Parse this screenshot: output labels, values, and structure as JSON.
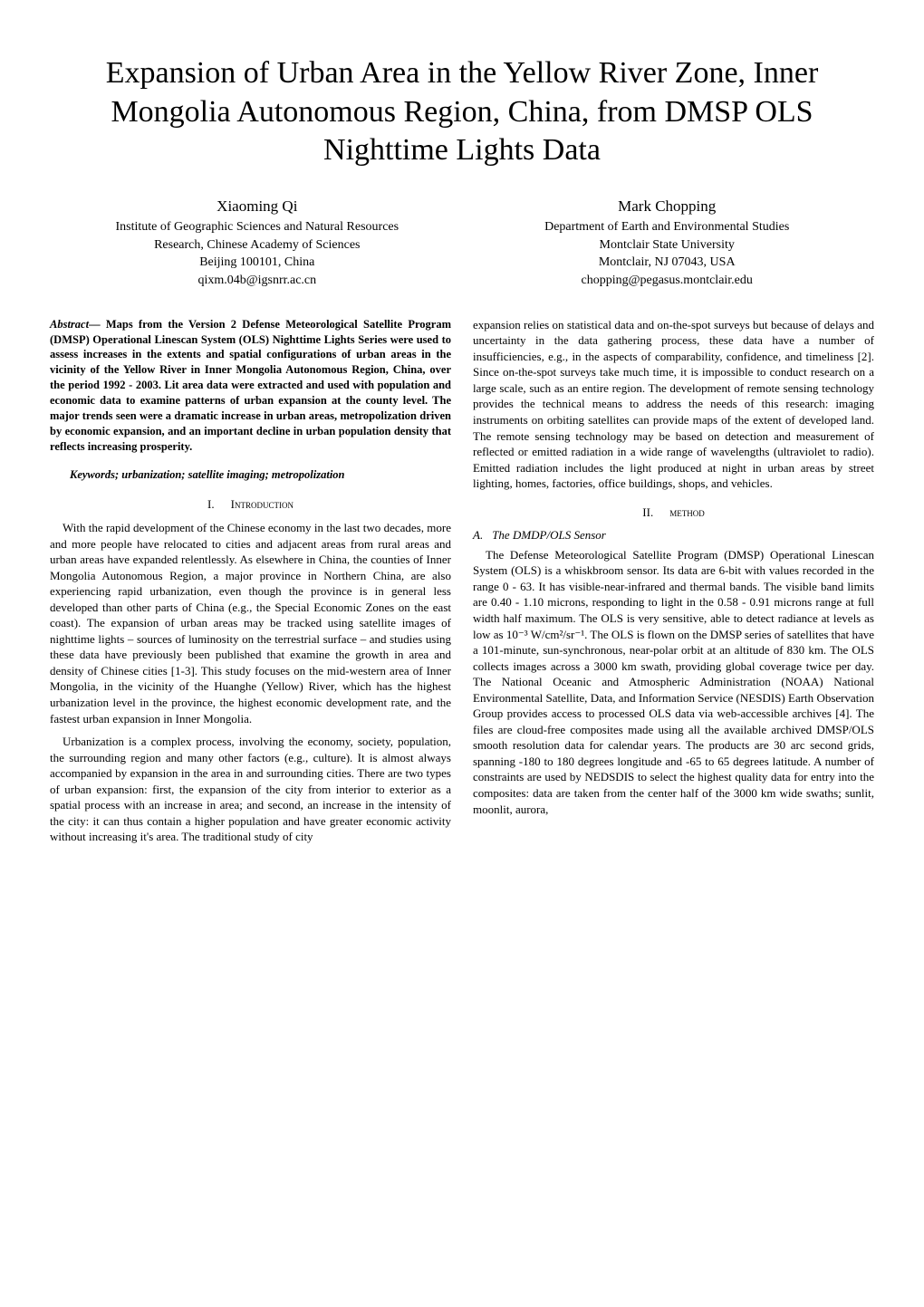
{
  "title": "Expansion of Urban Area in the Yellow River Zone, Inner Mongolia Autonomous Region, China, from DMSP OLS Nighttime Lights Data",
  "authors": [
    {
      "name": "Xiaoming Qi",
      "lines": [
        "Institute of Geographic Sciences and Natural Resources",
        "Research, Chinese Academy of Sciences",
        "Beijing 100101, China",
        "qixm.04b@igsnrr.ac.cn"
      ]
    },
    {
      "name": "Mark Chopping",
      "lines": [
        "Department of Earth and Environmental Studies",
        "Montclair State University",
        "Montclair, NJ 07043, USA",
        "chopping@pegasus.montclair.edu"
      ]
    }
  ],
  "abstract_label": "Abstract",
  "abstract": "— Maps from the Version 2 Defense Meteorological Satellite Program (DMSP) Operational Linescan System (OLS) Nighttime Lights Series were used to assess increases in the extents and spatial configurations of urban areas in the vicinity of the Yellow River in Inner Mongolia Autonomous Region, China, over the period 1992 - 2003. Lit area data were extracted and used with population and economic data to examine patterns of urban expansion at the county level. The major trends seen were a dramatic increase in urban areas, metropolization driven by economic expansion, and an important decline in urban population density that reflects increasing prosperity.",
  "keywords": "Keywords; urbanization; satellite imaging; metropolization",
  "sections": {
    "intro": {
      "num": "I.",
      "title": "Introduction"
    },
    "method": {
      "num": "II.",
      "title": "method"
    },
    "sub_a": {
      "letter": "A.",
      "title": "The DMDP/OLS Sensor"
    }
  },
  "paras": {
    "intro_p1": "With the rapid development of the Chinese economy in the last two decades, more and more people have relocated to cities and adjacent areas from rural areas and urban areas have expanded relentlessly. As elsewhere in China, the counties of Inner Mongolia Autonomous Region, a major province in Northern China, are also experiencing rapid urbanization, even though the province is in general less developed than other parts of China (e.g., the Special Economic Zones on the east coast). The expansion of urban areas may be tracked using satellite images of nighttime lights – sources of luminosity on the terrestrial surface – and studies using these data have previously been published that examine the growth in area and density of Chinese cities [1-3]. This study focuses on the mid-western area of Inner Mongolia, in the vicinity of the Huanghe (Yellow) River, which has the highest urbanization level in the province, the highest economic development rate, and the fastest urban expansion in Inner Mongolia.",
    "intro_p2": "Urbanization is a complex process, involving the economy, society, population, the surrounding region and many other factors (e.g., culture). It is almost always accompanied by expansion in the area in and surrounding cities. There are two types of urban expansion: first, the expansion of the city from interior to exterior as a spatial process with an increase in area; and second, an increase in the intensity of the city: it can thus contain a higher population and have greater economic activity without increasing it's area. The traditional study of city",
    "right_p1": "expansion relies on statistical data and on-the-spot surveys but because of delays and uncertainty in the data gathering process, these data have a number of insufficiencies, e.g., in the aspects of comparability, confidence, and timeliness [2]. Since on-the-spot surveys take much time, it is impossible to conduct research on a large scale, such as an entire region. The development of remote sensing technology provides the technical means to address the needs of this research: imaging instruments on orbiting satellites can provide maps of the extent of developed land. The remote sensing technology may be based on detection and measurement of reflected or emitted radiation in a wide range of wavelengths (ultraviolet to radio). Emitted radiation includes the light produced at night in urban areas by street lighting, homes, factories, office buildings, shops, and vehicles.",
    "method_p1": "The Defense Meteorological Satellite Program (DMSP) Operational Linescan System (OLS) is a whiskbroom sensor. Its data are 6-bit with values recorded in the range 0 - 63. It has visible-near-infrared and thermal bands. The visible band limits are 0.40 - 1.10 microns, responding to light in the 0.58 - 0.91 microns range at full width half maximum. The OLS is very sensitive, able to detect radiance at levels as low as 10⁻³ W/cm²/sr⁻¹. The OLS is flown on the DMSP series of satellites that have a 101-minute, sun-synchronous, near-polar orbit at an altitude of 830 km. The OLS collects images across a 3000 km swath, providing global coverage twice per day. The National Oceanic and Atmospheric Administration (NOAA) National Environmental Satellite, Data, and Information Service (NESDIS) Earth Observation Group provides access to processed OLS data via web-accessible archives [4]. The files are cloud-free composites made using all the available archived DMSP/OLS smooth resolution data for calendar years. The products are 30 arc second grids, spanning -180 to 180 degrees longitude and -65 to 65 degrees latitude. A number of constraints are used by NEDSDIS to select the highest quality data for entry into the composites: data are taken from the center half of the 3000 km wide swaths; sunlit, moonlit, aurora,"
  }
}
